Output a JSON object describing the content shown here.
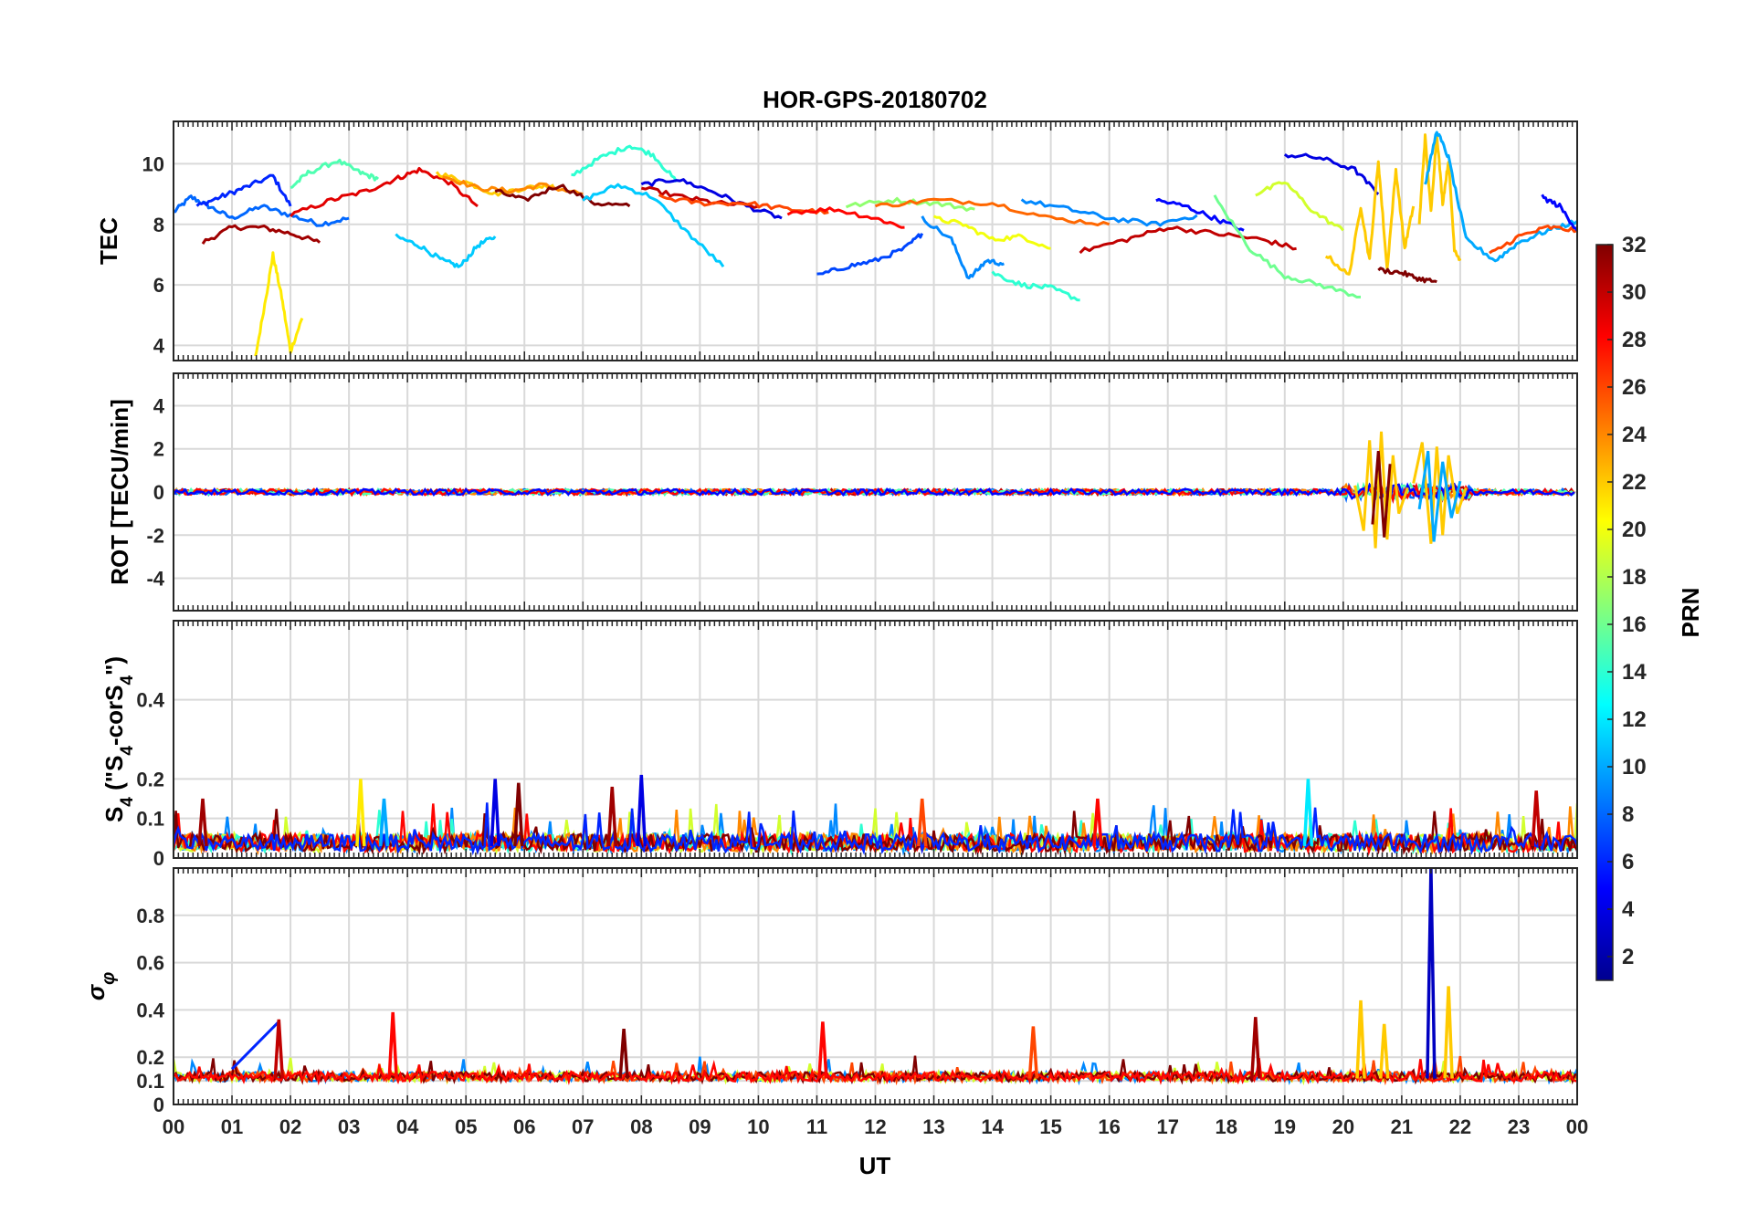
{
  "title": "HOR-GPS-20180702",
  "xlabel": "UT",
  "x_tick_labels": [
    "00",
    "01",
    "02",
    "03",
    "04",
    "05",
    "06",
    "07",
    "08",
    "09",
    "10",
    "11",
    "12",
    "13",
    "14",
    "15",
    "16",
    "17",
    "18",
    "19",
    "20",
    "21",
    "22",
    "23",
    "00"
  ],
  "colorbar": {
    "label": "PRN",
    "ticks": [
      2,
      4,
      6,
      8,
      10,
      12,
      14,
      16,
      18,
      20,
      22,
      24,
      26,
      28,
      30,
      32
    ],
    "range": [
      1,
      32
    ],
    "colormap": "jet"
  },
  "chart_data": [
    {
      "type": "line",
      "panel": "TEC",
      "ylabel": "TEC",
      "xlim": [
        0,
        24
      ],
      "ylim": [
        3.5,
        11.4
      ],
      "yticks": [
        4,
        6,
        8,
        10
      ],
      "series": [
        {
          "prn": 8,
          "x": [
            0,
            0.3,
            0.6,
            1.0,
            1.5,
            2.0,
            2.5,
            3.0
          ],
          "y": [
            8.4,
            8.9,
            8.6,
            8.2,
            8.6,
            8.3,
            8.0,
            8.2
          ]
        },
        {
          "prn": 6,
          "x": [
            0.4,
            0.8,
            1.2,
            1.7,
            2.0
          ],
          "y": [
            8.6,
            8.9,
            9.2,
            9.6,
            8.6
          ]
        },
        {
          "prn": 31,
          "x": [
            0.5,
            1.0,
            1.5,
            2.0,
            2.5
          ],
          "y": [
            7.4,
            7.9,
            7.9,
            7.7,
            7.4
          ]
        },
        {
          "prn": 21,
          "x": [
            1.4,
            1.6,
            1.7,
            1.85,
            2.0,
            2.2
          ],
          "y": [
            3.6,
            5.8,
            7.0,
            5.6,
            3.8,
            4.9
          ]
        },
        {
          "prn": 15,
          "x": [
            2.0,
            2.3,
            2.8,
            3.2,
            3.5
          ],
          "y": [
            9.2,
            9.7,
            10.1,
            9.7,
            9.5
          ]
        },
        {
          "prn": 29,
          "x": [
            2.0,
            2.7,
            3.3,
            3.8,
            4.2,
            4.7,
            5.2
          ],
          "y": [
            8.3,
            8.8,
            9.1,
            9.5,
            9.8,
            9.4,
            8.6
          ]
        },
        {
          "prn": 11,
          "x": [
            3.8,
            4.2,
            4.6,
            4.9,
            5.2,
            5.5
          ],
          "y": [
            7.6,
            7.3,
            6.8,
            6.6,
            7.3,
            7.6
          ]
        },
        {
          "prn": 22,
          "x": [
            4.5,
            5.0,
            5.5,
            6.0,
            6.5
          ],
          "y": [
            9.7,
            9.4,
            9.0,
            9.2,
            9.3
          ]
        },
        {
          "prn": 24,
          "x": [
            4.6,
            5.2,
            5.8,
            6.3,
            7.0
          ],
          "y": [
            9.6,
            9.2,
            9.1,
            9.3,
            9.0
          ]
        },
        {
          "prn": 32,
          "x": [
            5.5,
            6.0,
            6.6,
            7.2,
            7.8
          ],
          "y": [
            9.1,
            8.8,
            9.3,
            8.7,
            8.6
          ]
        },
        {
          "prn": 14,
          "x": [
            6.8,
            7.3,
            7.8,
            8.2,
            8.6
          ],
          "y": [
            9.6,
            10.2,
            10.6,
            10.3,
            9.4
          ]
        },
        {
          "prn": 11,
          "x": [
            7.0,
            7.6,
            8.2,
            8.8,
            9.4
          ],
          "y": [
            8.8,
            9.3,
            8.9,
            7.7,
            6.6
          ]
        },
        {
          "prn": 4,
          "x": [
            8.0,
            8.6,
            9.2,
            9.8,
            10.4
          ],
          "y": [
            9.3,
            9.5,
            9.1,
            8.6,
            8.2
          ]
        },
        {
          "prn": 30,
          "x": [
            8.0,
            8.7,
            9.3,
            10.0
          ],
          "y": [
            9.2,
            8.9,
            8.7,
            8.6
          ]
        },
        {
          "prn": 26,
          "x": [
            8.3,
            9.0,
            9.8,
            10.5,
            11.2
          ],
          "y": [
            8.9,
            8.7,
            8.7,
            8.5,
            8.4
          ]
        },
        {
          "prn": 7,
          "x": [
            11.0,
            11.5,
            12.0,
            12.5,
            12.8
          ],
          "y": [
            6.3,
            6.6,
            6.8,
            7.2,
            7.7
          ]
        },
        {
          "prn": 28,
          "x": [
            10.5,
            11.3,
            12.0,
            12.5
          ],
          "y": [
            8.4,
            8.5,
            8.2,
            7.9
          ]
        },
        {
          "prn": 17,
          "x": [
            11.5,
            12.3,
            13.0,
            13.7
          ],
          "y": [
            8.6,
            8.8,
            8.7,
            8.5
          ]
        },
        {
          "prn": 25,
          "x": [
            12.0,
            13.0,
            14.0,
            15.0,
            16.0
          ],
          "y": [
            8.6,
            8.8,
            8.7,
            8.2,
            8.0
          ]
        },
        {
          "prn": 9,
          "x": [
            12.8,
            13.3,
            13.6,
            13.9,
            14.2
          ],
          "y": [
            8.2,
            7.5,
            6.2,
            6.8,
            6.7
          ]
        },
        {
          "prn": 20,
          "x": [
            13.0,
            13.5,
            14.0,
            14.5,
            15.0
          ],
          "y": [
            8.2,
            8.0,
            7.5,
            7.6,
            7.2
          ]
        },
        {
          "prn": 14,
          "x": [
            14.0,
            14.5,
            15.0,
            15.5
          ],
          "y": [
            6.4,
            6.0,
            5.9,
            5.5
          ]
        },
        {
          "prn": 9,
          "x": [
            14.5,
            15.3,
            16.0,
            16.8,
            17.5
          ],
          "y": [
            8.8,
            8.5,
            8.2,
            8.0,
            8.3
          ]
        },
        {
          "prn": 30,
          "x": [
            15.5,
            16.3,
            17.0,
            17.8,
            18.6,
            19.2
          ],
          "y": [
            7.1,
            7.5,
            7.9,
            7.7,
            7.5,
            7.2
          ]
        },
        {
          "prn": 5,
          "x": [
            16.8,
            17.3,
            17.8,
            18.3
          ],
          "y": [
            8.8,
            8.6,
            8.2,
            7.8
          ]
        },
        {
          "prn": 16,
          "x": [
            17.8,
            18.4,
            19.0,
            19.6,
            20.3
          ],
          "y": [
            8.9,
            7.2,
            6.3,
            6.0,
            5.6
          ]
        },
        {
          "prn": 19,
          "x": [
            18.5,
            19.0,
            19.5,
            20.0
          ],
          "y": [
            9.0,
            9.4,
            8.4,
            7.8
          ]
        },
        {
          "prn": 4,
          "x": [
            19.0,
            19.6,
            20.2,
            20.6
          ],
          "y": [
            10.3,
            10.2,
            9.8,
            9.0
          ]
        },
        {
          "prn": 22,
          "x": [
            19.7,
            20.1,
            20.3,
            20.45,
            20.6,
            20.75,
            20.9,
            21.05,
            21.2
          ],
          "y": [
            7.0,
            6.3,
            8.6,
            6.8,
            10.1,
            6.5,
            9.8,
            7.2,
            8.6
          ]
        },
        {
          "prn": 22,
          "x": [
            21.3,
            21.4,
            21.5,
            21.6,
            21.7,
            21.8,
            21.9,
            22.0
          ],
          "y": [
            8.0,
            10.9,
            8.4,
            11.0,
            8.7,
            10.1,
            7.2,
            6.8
          ]
        },
        {
          "prn": 10,
          "x": [
            21.4,
            21.6,
            21.8,
            22.1,
            22.6,
            23.0,
            23.5,
            24.0
          ],
          "y": [
            9.3,
            11.1,
            10.2,
            7.5,
            6.8,
            7.4,
            7.8,
            8.1
          ]
        },
        {
          "prn": 32,
          "x": [
            20.6,
            21.0,
            21.3,
            21.6
          ],
          "y": [
            6.5,
            6.4,
            6.2,
            6.1
          ]
        },
        {
          "prn": 26,
          "x": [
            22.5,
            23.0,
            23.5,
            24.0
          ],
          "y": [
            7.0,
            7.6,
            7.9,
            7.8
          ]
        },
        {
          "prn": 5,
          "x": [
            23.4,
            23.7,
            24.0
          ],
          "y": [
            8.9,
            8.6,
            7.8
          ]
        }
      ]
    },
    {
      "type": "line",
      "panel": "ROT",
      "ylabel": "ROT [TECU/min]",
      "xlim": [
        0,
        24
      ],
      "ylim": [
        -5.5,
        5.5
      ],
      "yticks": [
        -4,
        -2,
        0,
        2,
        4
      ],
      "series": [
        {
          "prn": 30,
          "x": [
            0,
            24
          ],
          "y": [
            0,
            0
          ]
        },
        {
          "prn": 22,
          "x": [
            20.2,
            20.35,
            20.45,
            20.55,
            20.65,
            20.75,
            20.85,
            20.95,
            21.1
          ],
          "y": [
            0.3,
            -1.8,
            2.4,
            -2.6,
            2.8,
            -2.2,
            1.7,
            -1.0,
            0.2
          ]
        },
        {
          "prn": 32,
          "x": [
            20.5,
            20.6,
            20.7,
            20.8
          ],
          "y": [
            -1.5,
            1.9,
            -2.1,
            1.3
          ]
        },
        {
          "prn": 22,
          "x": [
            21.2,
            21.35,
            21.5,
            21.6,
            21.7,
            21.8,
            21.95,
            22.1
          ],
          "y": [
            0.4,
            2.3,
            -2.4,
            2.1,
            -2.0,
            1.7,
            -1.0,
            0.2
          ]
        },
        {
          "prn": 10,
          "x": [
            21.3,
            21.45,
            21.55,
            21.7,
            21.85,
            22.0
          ],
          "y": [
            -0.8,
            1.9,
            -2.3,
            1.4,
            -1.2,
            0.5
          ]
        }
      ]
    },
    {
      "type": "line",
      "panel": "S4",
      "ylabel": "S4 (\"S4-corS4\")",
      "xlim": [
        0,
        24
      ],
      "ylim": [
        0,
        0.6
      ],
      "yticks": [
        0,
        0.1,
        0.2,
        0.4
      ],
      "spikes": [
        {
          "prn": 31,
          "x": 0.5,
          "y": 0.15
        },
        {
          "prn": 21,
          "x": 3.2,
          "y": 0.2
        },
        {
          "prn": 10,
          "x": 3.6,
          "y": 0.15
        },
        {
          "prn": 4,
          "x": 5.5,
          "y": 0.2
        },
        {
          "prn": 32,
          "x": 5.9,
          "y": 0.19
        },
        {
          "prn": 31,
          "x": 7.5,
          "y": 0.18
        },
        {
          "prn": 4,
          "x": 8.0,
          "y": 0.21
        },
        {
          "prn": 26,
          "x": 12.8,
          "y": 0.15
        },
        {
          "prn": 28,
          "x": 15.8,
          "y": 0.15
        },
        {
          "prn": 12,
          "x": 19.4,
          "y": 0.2
        },
        {
          "prn": 30,
          "x": 23.3,
          "y": 0.17
        }
      ]
    },
    {
      "type": "line",
      "panel": "sigma_phi",
      "ylabel": "σφ",
      "xlim": [
        0,
        24
      ],
      "ylim": [
        0,
        1.0
      ],
      "yticks": [
        0,
        0.1,
        0.2,
        0.4,
        0.6,
        0.8
      ],
      "series": [
        {
          "prn": 6,
          "x": [
            1.0,
            1.8
          ],
          "y": [
            0.15,
            0.35
          ]
        }
      ],
      "spikes": [
        {
          "prn": 30,
          "x": 1.8,
          "y": 0.36
        },
        {
          "prn": 28,
          "x": 3.75,
          "y": 0.39
        },
        {
          "prn": 32,
          "x": 7.7,
          "y": 0.32
        },
        {
          "prn": 28,
          "x": 11.1,
          "y": 0.35
        },
        {
          "prn": 26,
          "x": 14.7,
          "y": 0.33
        },
        {
          "prn": 31,
          "x": 18.5,
          "y": 0.37
        },
        {
          "prn": 22,
          "x": 20.3,
          "y": 0.44
        },
        {
          "prn": 22,
          "x": 20.7,
          "y": 0.34
        },
        {
          "prn": 3,
          "x": 21.5,
          "y": 1.0
        },
        {
          "prn": 22,
          "x": 21.8,
          "y": 0.5
        }
      ]
    }
  ]
}
